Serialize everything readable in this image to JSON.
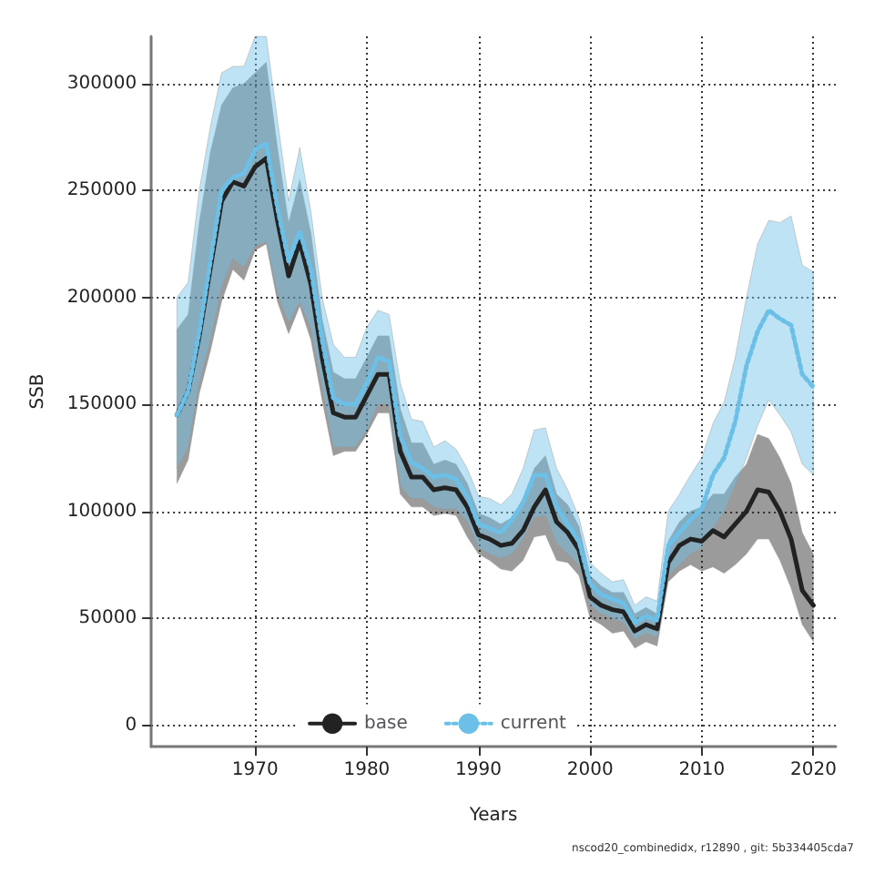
{
  "chart_data": {
    "type": "line",
    "xlabel": "Years",
    "ylabel": "SSB",
    "annotations": [
      "nscod20_combinedidx, r12890 , git: 5b334405cda7"
    ],
    "x": [
      1963,
      1964,
      1965,
      1966,
      1967,
      1968,
      1969,
      1970,
      1971,
      1972,
      1973,
      1974,
      1975,
      1976,
      1977,
      1978,
      1979,
      1980,
      1981,
      1982,
      1983,
      1984,
      1985,
      1986,
      1987,
      1988,
      1989,
      1990,
      1991,
      1992,
      1993,
      1994,
      1995,
      1996,
      1997,
      1998,
      1999,
      2000,
      2001,
      2002,
      2003,
      2004,
      2005,
      2006,
      2007,
      2008,
      2009,
      2010,
      2011,
      2012,
      2013,
      2014,
      2015,
      2016,
      2017,
      2018,
      2019,
      2020
    ],
    "xlim": [
      1960.7,
      2022
    ],
    "xticks": [
      1970,
      1980,
      1990,
      2000,
      2010,
      2020
    ],
    "ylim": [
      -10000,
      322000
    ],
    "yticks": [
      0,
      50000,
      100000,
      150000,
      200000,
      250000,
      300000
    ],
    "grid": true,
    "legend": "bottom",
    "series": [
      {
        "name": "base",
        "color": "#222222",
        "line_style": "solid",
        "values": [
          145000,
          156000,
          182000,
          214000,
          245000,
          254000,
          252000,
          261000,
          265000,
          236000,
          210000,
          226000,
          206000,
          172000,
          146000,
          144000,
          144000,
          154000,
          164000,
          164000,
          128000,
          116000,
          116000,
          110000,
          111000,
          110000,
          102000,
          89000,
          87000,
          84000,
          85000,
          91000,
          102000,
          110000,
          95000,
          90000,
          82000,
          60000,
          56000,
          54000,
          53000,
          44000,
          47000,
          45000,
          76000,
          84000,
          87000,
          86000,
          91000,
          88000,
          94000,
          100000,
          110000,
          109000,
          100000,
          87000,
          63000,
          56000
        ],
        "upper": [
          185000,
          192000,
          235000,
          268000,
          290000,
          298000,
          300000,
          305000,
          310000,
          270000,
          235000,
          255000,
          230000,
          190000,
          165000,
          162000,
          162000,
          172000,
          182000,
          182000,
          148000,
          132000,
          132000,
          122000,
          124000,
          122000,
          113000,
          99000,
          97000,
          94000,
          97000,
          106000,
          120000,
          126000,
          108000,
          103000,
          93000,
          70000,
          65000,
          62000,
          62000,
          52000,
          55000,
          52000,
          86000,
          95000,
          100000,
          102000,
          108000,
          108000,
          116000,
          122000,
          136000,
          134000,
          125000,
          113000,
          90000,
          80000
        ],
        "lower": [
          113000,
          124000,
          155000,
          175000,
          198000,
          213000,
          208000,
          222000,
          225000,
          198000,
          183000,
          196000,
          180000,
          152000,
          126000,
          128000,
          128000,
          136000,
          146000,
          146000,
          108000,
          102000,
          102000,
          98000,
          99000,
          98000,
          88000,
          80000,
          77000,
          73000,
          72000,
          77000,
          88000,
          89000,
          77000,
          76000,
          70000,
          50000,
          47000,
          43000,
          44000,
          36000,
          39000,
          37000,
          67000,
          72000,
          75000,
          72000,
          74000,
          71000,
          75000,
          80000,
          87000,
          87000,
          77000,
          64000,
          47000,
          39000
        ]
      },
      {
        "name": "current",
        "color": "#6cc0e8",
        "line_style": "dotted",
        "values": [
          145000,
          156000,
          184000,
          217000,
          250000,
          256000,
          258000,
          269000,
          272000,
          242000,
          217000,
          231000,
          213000,
          180000,
          153000,
          150000,
          150000,
          160000,
          172000,
          170000,
          135000,
          123000,
          120000,
          116000,
          117000,
          115000,
          107000,
          94000,
          92000,
          90000,
          96000,
          104000,
          117000,
          117000,
          102000,
          94000,
          86000,
          66000,
          61000,
          59000,
          57000,
          48000,
          51000,
          49000,
          84000,
          90000,
          96000,
          101000,
          117000,
          125000,
          142000,
          168000,
          184000,
          194000,
          190000,
          187000,
          164000,
          158000
        ],
        "upper": [
          200000,
          207000,
          250000,
          280000,
          305000,
          308000,
          308000,
          322000,
          322000,
          283000,
          245000,
          270000,
          240000,
          200000,
          178000,
          172000,
          172000,
          186000,
          194000,
          192000,
          160000,
          143000,
          142000,
          130000,
          133000,
          129000,
          120000,
          107000,
          106000,
          103000,
          108000,
          120000,
          138000,
          139000,
          120000,
          110000,
          97000,
          76000,
          71000,
          67000,
          68000,
          56000,
          60000,
          58000,
          100000,
          108000,
          117000,
          125000,
          141000,
          151000,
          172000,
          200000,
          225000,
          236000,
          235000,
          238000,
          215000,
          212000
        ],
        "lower": [
          120000,
          130000,
          160000,
          180000,
          205000,
          218000,
          214000,
          224000,
          226000,
          202000,
          188000,
          198000,
          185000,
          158000,
          130000,
          130000,
          130000,
          138000,
          150000,
          150000,
          112000,
          106000,
          106000,
          102000,
          101000,
          101000,
          95000,
          83000,
          80000,
          78000,
          80000,
          87000,
          97000,
          98000,
          85000,
          80000,
          75000,
          56000,
          52000,
          50000,
          48000,
          40000,
          43000,
          41000,
          70000,
          75000,
          80000,
          83000,
          92000,
          100000,
          112000,
          125000,
          140000,
          152000,
          145000,
          137000,
          122000,
          117000
        ]
      }
    ]
  }
}
